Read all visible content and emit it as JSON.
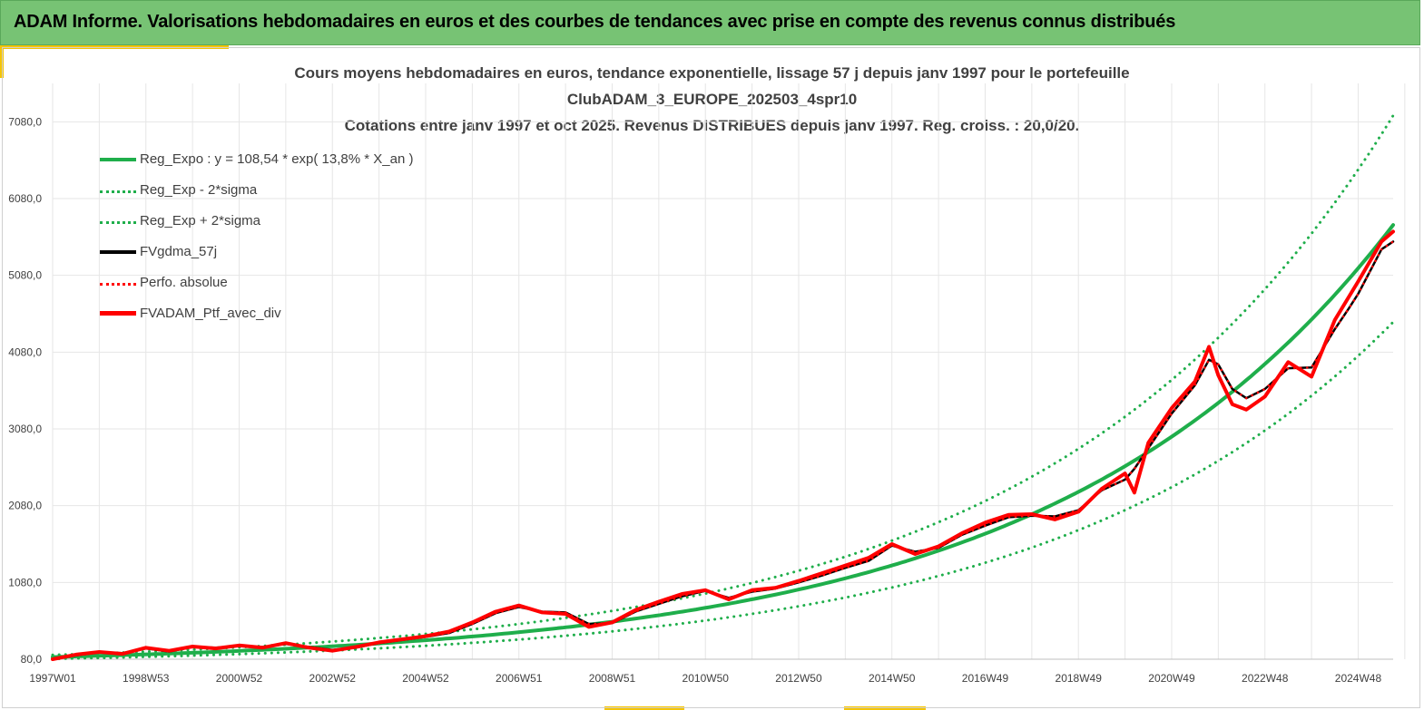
{
  "header": {
    "title": "ADAM Informe. Valorisations hebdomadaires en euros et des courbes de tendances avec prise en compte des revenus connus distribués"
  },
  "colors": {
    "header_bg": "#77c374",
    "accent": "#f5c400",
    "reg_green": "#1fae4b",
    "fv_black": "#000000",
    "perf_red": "#ff0000",
    "grid": "#e6e6e6"
  },
  "chart_data": {
    "type": "line",
    "title": [
      "Cours moyens hebdomadaires  en euros, tendance exponentielle, lissage 57 j depuis janv 1997 pour le portefeuille",
      "ClubADAM_3_EUROPE_202503_4spr10",
      "Cotations  entre janv 1997 et oct 2025. Revenus DISTRIBUES depuis janv 1997. Reg. croiss. : 20,0/20."
    ],
    "xlabel": "",
    "ylabel": "",
    "ylim": [
      80,
      7580
    ],
    "grid": true,
    "legend_position": "top-left",
    "y_ticks": [
      "80,0",
      "1080,0",
      "2080,0",
      "3080,0",
      "4080,0",
      "5080,0",
      "6080,0",
      "7080,0"
    ],
    "x_ticks": [
      "1997W01",
      "1998W53",
      "2000W52",
      "2002W52",
      "2004W52",
      "2006W51",
      "2008W51",
      "2010W50",
      "2012W50",
      "2014W50",
      "2016W49",
      "2018W49",
      "2020W49",
      "2022W48",
      "2024W48"
    ],
    "x": [
      1997.0,
      1997.5,
      1998.0,
      1998.5,
      1999.0,
      1999.5,
      2000.0,
      2000.5,
      2001.0,
      2001.5,
      2002.0,
      2002.5,
      2003.0,
      2003.5,
      2004.0,
      2004.5,
      2005.0,
      2005.5,
      2006.0,
      2006.5,
      2007.0,
      2007.5,
      2008.0,
      2008.5,
      2009.0,
      2009.5,
      2010.0,
      2010.5,
      2011.0,
      2011.5,
      2012.0,
      2012.5,
      2013.0,
      2013.5,
      2014.0,
      2014.5,
      2015.0,
      2015.5,
      2016.0,
      2016.5,
      2017.0,
      2017.5,
      2018.0,
      2018.5,
      2019.0,
      2019.5,
      2020.0,
      2020.2,
      2020.5,
      2021.0,
      2021.5,
      2021.8,
      2022.0,
      2022.3,
      2022.6,
      2023.0,
      2023.5,
      2024.0,
      2024.5,
      2024.8,
      2025.0,
      2025.5,
      2025.75
    ],
    "series": [
      {
        "name": "Reg_Expo : y = 108,54 * exp( 13,8% *  X_an )",
        "style": "solid",
        "color": "#1fae4b",
        "formula": {
          "a": 108.54,
          "rate": 0.138,
          "x0": 1997.0
        }
      },
      {
        "name": "Reg_Exp - 2*sigma",
        "style": "dotted",
        "color": "#1fae4b",
        "formula": {
          "a": 84.6,
          "rate": 0.138,
          "x0": 1997.0
        }
      },
      {
        "name": "Reg_Exp + 2*sigma",
        "style": "dotted",
        "color": "#1fae4b",
        "formula": {
          "a": 135.5,
          "rate": 0.138,
          "x0": 1997.0
        }
      },
      {
        "name": "FVgdma_57j",
        "style": "solid",
        "color": "#000000",
        "values": [
          80,
          130,
          170,
          160,
          220,
          180,
          240,
          230,
          250,
          240,
          280,
          240,
          200,
          230,
          290,
          330,
          370,
          420,
          540,
          680,
          760,
          700,
          690,
          540,
          550,
          700,
          800,
          900,
          970,
          880,
          960,
          1000,
          1080,
          1170,
          1270,
          1360,
          1560,
          1480,
          1530,
          1700,
          1820,
          1930,
          1950,
          1940,
          2020,
          2280,
          2420,
          2560,
          2830,
          3280,
          3650,
          3980,
          3920,
          3600,
          3480,
          3600,
          3870,
          3880,
          4380,
          4650,
          4840,
          5420,
          5520
        ]
      },
      {
        "name": "Perfo. absolue",
        "style": "dotted",
        "color": "#ff0000",
        "values": [
          80,
          130,
          170,
          160,
          220,
          180,
          240,
          230,
          250,
          240,
          280,
          240,
          200,
          230,
          290,
          330,
          370,
          420,
          540,
          680,
          760,
          700,
          690,
          540,
          550,
          700,
          800,
          900,
          970,
          880,
          960,
          1000,
          1080,
          1170,
          1270,
          1360,
          1560,
          1480,
          1530,
          1700,
          1820,
          1930,
          1950,
          1940,
          2020,
          2280,
          2420,
          2560,
          2830,
          3280,
          3650,
          3980,
          3920,
          3600,
          3480,
          3600,
          3870,
          3880,
          4380,
          4650,
          4840,
          5420,
          5520
        ]
      },
      {
        "name": "FVADAM_Ptf_avec_div",
        "style": "solid",
        "color": "#ff0000",
        "values": [
          80,
          140,
          175,
          150,
          230,
          190,
          245,
          220,
          260,
          230,
          290,
          230,
          190,
          240,
          300,
          340,
          380,
          440,
          560,
          700,
          780,
          690,
          670,
          500,
          560,
          720,
          830,
          930,
          980,
          860,
          980,
          1010,
          1100,
          1200,
          1300,
          1400,
          1580,
          1450,
          1550,
          1720,
          1860,
          1960,
          1970,
          1900,
          2000,
          2300,
          2500,
          2250,
          2900,
          3350,
          3700,
          4150,
          3780,
          3400,
          3330,
          3500,
          3950,
          3760,
          4500,
          4800,
          5000,
          5520,
          5650
        ]
      }
    ]
  }
}
